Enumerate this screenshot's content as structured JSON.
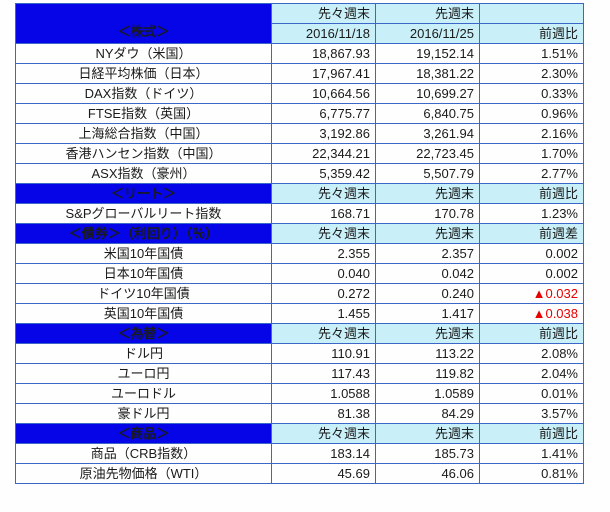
{
  "colors": {
    "section_header_bg": "#0505e8",
    "section_header_text": "#ffffff",
    "column_header_bg": "#c9f0f8",
    "grid_border": "#3b67c8",
    "negative_value": "#e80000",
    "body_text": "#1a1a1a"
  },
  "table": {
    "sections": [
      {
        "title": "＜株式＞",
        "col_prev": "先々週末",
        "col_last": "先週末",
        "change_label": "前週比",
        "dates": {
          "prev": "2016/11/18",
          "last": "2016/11/25"
        },
        "rows": [
          {
            "label": "NYダウ（米国）",
            "prev": "18,867.93",
            "last": "19,152.14",
            "change": "1.51%",
            "negative": false
          },
          {
            "label": "日経平均株価（日本）",
            "prev": "17,967.41",
            "last": "18,381.22",
            "change": "2.30%",
            "negative": false
          },
          {
            "label": "DAX指数（ドイツ）",
            "prev": "10,664.56",
            "last": "10,699.27",
            "change": "0.33%",
            "negative": false
          },
          {
            "label": "FTSE指数（英国）",
            "prev": "6,775.77",
            "last": "6,840.75",
            "change": "0.96%",
            "negative": false
          },
          {
            "label": "上海総合指数（中国）",
            "prev": "3,192.86",
            "last": "3,261.94",
            "change": "2.16%",
            "negative": false
          },
          {
            "label": "香港ハンセン指数（中国）",
            "prev": "22,344.21",
            "last": "22,723.45",
            "change": "1.70%",
            "negative": false
          },
          {
            "label": "ASX指数（豪州）",
            "prev": "5,359.42",
            "last": "5,507.79",
            "change": "2.77%",
            "negative": false
          }
        ]
      },
      {
        "title": "＜リート＞",
        "col_prev": "先々週末",
        "col_last": "先週末",
        "change_label": "前週比",
        "rows": [
          {
            "label": "S&Pグローバルリート指数",
            "prev": "168.71",
            "last": "170.78",
            "change": "1.23%",
            "negative": false
          }
        ]
      },
      {
        "title": "＜債券＞（利回り）（％）",
        "col_prev": "先々週末",
        "col_last": "先週末",
        "change_label": "前週差",
        "rows": [
          {
            "label": "米国10年国債",
            "prev": "2.355",
            "last": "2.357",
            "change": "0.002",
            "negative": false
          },
          {
            "label": "日本10年国債",
            "prev": "0.040",
            "last": "0.042",
            "change": "0.002",
            "negative": false
          },
          {
            "label": "ドイツ10年国債",
            "prev": "0.272",
            "last": "0.240",
            "change": "▲0.032",
            "negative": true
          },
          {
            "label": "英国10年国債",
            "prev": "1.455",
            "last": "1.417",
            "change": "▲0.038",
            "negative": true
          }
        ]
      },
      {
        "title": "＜為替＞",
        "col_prev": "先々週末",
        "col_last": "先週末",
        "change_label": "前週比",
        "rows": [
          {
            "label": "ドル円",
            "prev": "110.91",
            "last": "113.22",
            "change": "2.08%",
            "negative": false
          },
          {
            "label": "ユーロ円",
            "prev": "117.43",
            "last": "119.82",
            "change": "2.04%",
            "negative": false
          },
          {
            "label": "ユーロドル",
            "prev": "1.0588",
            "last": "1.0589",
            "change": "0.01%",
            "negative": false
          },
          {
            "label": "豪ドル円",
            "prev": "81.38",
            "last": "84.29",
            "change": "3.57%",
            "negative": false
          }
        ]
      },
      {
        "title": "＜商品＞",
        "col_prev": "先々週末",
        "col_last": "先週末",
        "change_label": "前週比",
        "rows": [
          {
            "label": "商品（CRB指数）",
            "prev": "183.14",
            "last": "185.73",
            "change": "1.41%",
            "negative": false
          },
          {
            "label": "原油先物価格（WTI）",
            "prev": "45.69",
            "last": "46.06",
            "change": "0.81%",
            "negative": false
          }
        ]
      }
    ]
  }
}
